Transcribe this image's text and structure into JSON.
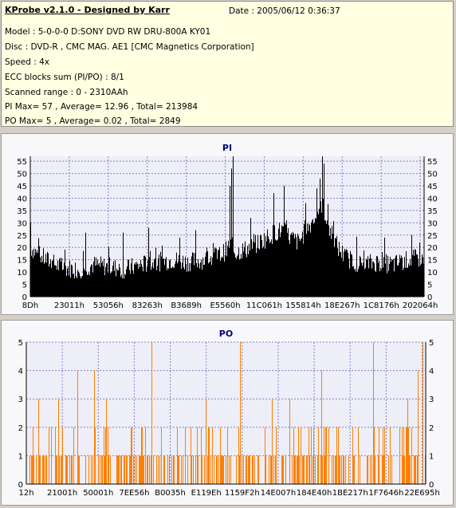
{
  "info": {
    "title": "KProbe v2.1.0 - Designed by Karr",
    "date": "Date : 2005/06/12 0:36:37",
    "model": "Model : 5-0-0-0 D:SONY    DVD RW DRU-800A  KY01",
    "disc": "Disc : DVD-R , CMC MAG. AE1 [CMC Magnetics Corporation]",
    "speed": "Speed : 4x",
    "ecc": "ECC blocks sum (PI/PO) : 8/1",
    "range": "Scanned range : 0 - 2310AAh",
    "pi_stats": "PI Max= 57 , Average= 12.96 , Total= 213984",
    "po_stats": "PO Max= 5 , Average= 0.02 , Total= 2849"
  },
  "colors": {
    "pi": "#000000",
    "po": "#ff7f00",
    "grid": "#8080c0",
    "title": "#000080",
    "info_bg": "#ffffe1",
    "plot_bg": "#eeeef8"
  },
  "chart_data": [
    {
      "type": "bar",
      "title": "PI",
      "xticks": [
        "8Dh",
        "23011h",
        "53056h",
        "83263h",
        "B3689h",
        "E5560h",
        "11C061h",
        "155814h",
        "18E267h",
        "1C8176h",
        "202064h"
      ],
      "yticks": [
        0,
        5,
        10,
        15,
        20,
        25,
        30,
        35,
        40,
        45,
        50,
        55
      ],
      "ylim": [
        0,
        57
      ],
      "grid": true,
      "profile": [
        [
          0.0,
          20
        ],
        [
          0.02,
          17
        ],
        [
          0.05,
          14
        ],
        [
          0.08,
          12
        ],
        [
          0.12,
          11
        ],
        [
          0.16,
          13
        ],
        [
          0.2,
          12
        ],
        [
          0.24,
          11
        ],
        [
          0.28,
          13
        ],
        [
          0.32,
          14
        ],
        [
          0.36,
          15
        ],
        [
          0.4,
          14
        ],
        [
          0.44,
          15
        ],
        [
          0.46,
          16
        ],
        [
          0.48,
          17
        ],
        [
          0.5,
          19
        ],
        [
          0.505,
          22
        ],
        [
          0.52,
          18
        ],
        [
          0.56,
          20
        ],
        [
          0.58,
          22
        ],
        [
          0.6,
          24
        ],
        [
          0.62,
          26
        ],
        [
          0.64,
          27
        ],
        [
          0.66,
          24
        ],
        [
          0.68,
          22
        ],
        [
          0.7,
          27
        ],
        [
          0.72,
          32
        ],
        [
          0.74,
          38
        ],
        [
          0.76,
          27
        ],
        [
          0.78,
          20
        ],
        [
          0.8,
          16
        ],
        [
          0.84,
          13
        ],
        [
          0.88,
          14
        ],
        [
          0.92,
          13
        ],
        [
          0.96,
          15
        ],
        [
          1.0,
          16
        ]
      ],
      "peaks": [
        [
          0.0,
          30
        ],
        [
          0.515,
          57
        ],
        [
          0.512,
          52
        ],
        [
          0.508,
          45
        ],
        [
          0.618,
          42
        ],
        [
          0.645,
          45
        ],
        [
          0.7,
          38
        ],
        [
          0.728,
          44
        ],
        [
          0.742,
          57
        ],
        [
          0.746,
          54
        ],
        [
          0.736,
          48
        ],
        [
          0.56,
          32
        ],
        [
          0.3,
          28
        ],
        [
          0.14,
          26
        ],
        [
          0.42,
          27
        ],
        [
          0.9,
          24
        ],
        [
          0.97,
          25
        ],
        [
          0.38,
          24
        ],
        [
          0.235,
          26
        ]
      ]
    },
    {
      "type": "bar",
      "title": "PO",
      "xticks": [
        "12h",
        "21001h",
        "50001h",
        "7EE56h",
        "B0035h",
        "E119Eh",
        "1159F2h",
        "14E007h",
        "184E40h",
        "1BE217h",
        "1F7646h",
        "22E695h"
      ],
      "yticks": [
        0,
        1,
        2,
        3,
        4,
        5
      ],
      "ylim": [
        0,
        5
      ],
      "grid": true,
      "peaks": [
        [
          0.313,
          5
        ],
        [
          0.535,
          5
        ],
        [
          0.87,
          5
        ],
        [
          0.994,
          5
        ],
        [
          0.128,
          4
        ],
        [
          0.169,
          4
        ],
        [
          0.739,
          4
        ],
        [
          0.982,
          4
        ],
        [
          0.03,
          3
        ],
        [
          0.2,
          3
        ],
        [
          0.45,
          3
        ],
        [
          0.66,
          3
        ],
        [
          0.955,
          3
        ],
        [
          0.08,
          3
        ],
        [
          0.615,
          3
        ]
      ]
    }
  ]
}
